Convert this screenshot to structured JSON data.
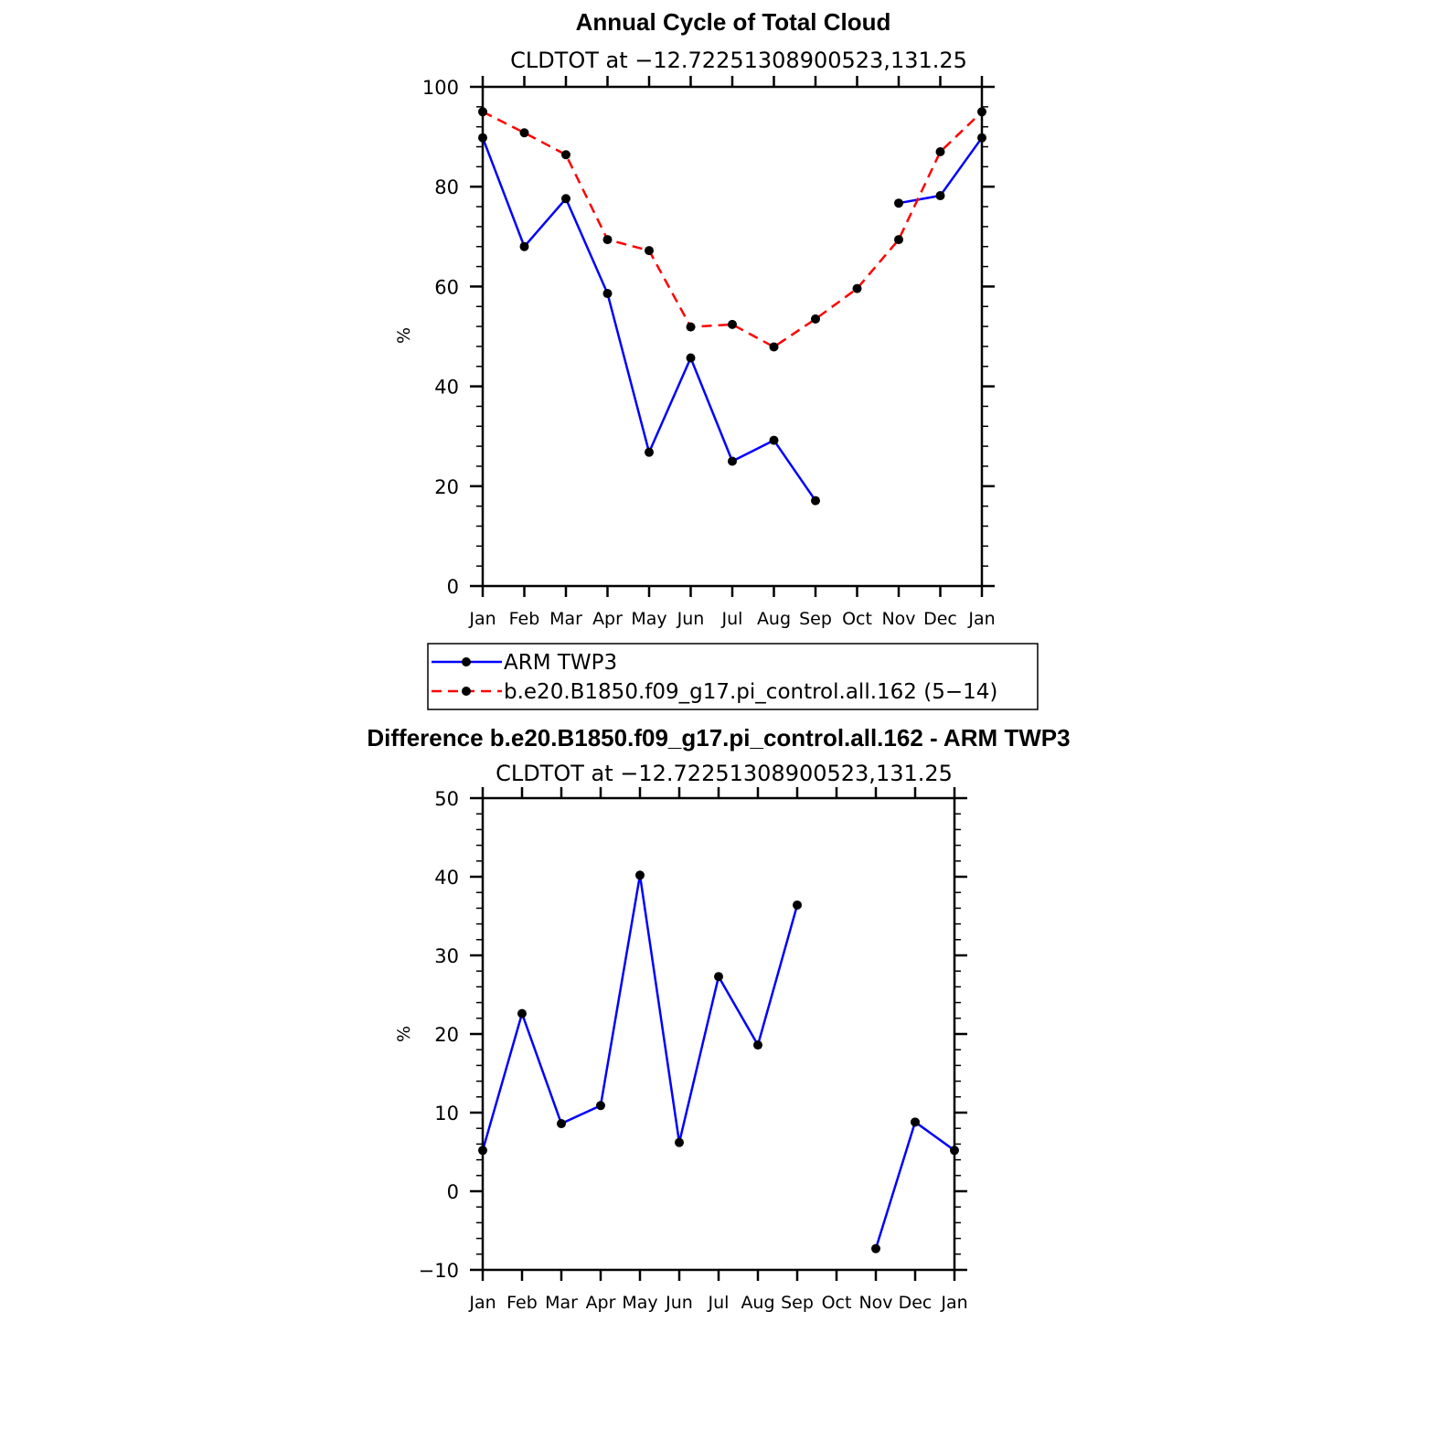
{
  "chart_data": [
    {
      "type": "line",
      "title": "Annual Cycle of Total Cloud",
      "subtitle": "CLDTOT at −12.72251308900523,131.25",
      "xlabel": "",
      "ylabel": "%",
      "ylim": [
        0,
        100
      ],
      "yticks": [
        "0",
        "20",
        "40",
        "60",
        "80",
        "100"
      ],
      "categories": [
        "Jan",
        "Feb",
        "Mar",
        "Apr",
        "May",
        "Jun",
        "Jul",
        "Aug",
        "Sep",
        "Oct",
        "Nov",
        "Dec",
        "Jan"
      ],
      "series": [
        {
          "name": "ARM TWP3",
          "color": "#0000ff",
          "style": "solid",
          "values": [
            89.8,
            68.0,
            77.6,
            58.6,
            26.8,
            45.7,
            25.0,
            29.2,
            17.1,
            null,
            76.7,
            78.2,
            89.8
          ]
        },
        {
          "name": "b.e20.B1850.f09_g17.pi_control.all.162 (5−14)",
          "color": "#ff0000",
          "style": "dashed",
          "values": [
            95.0,
            90.8,
            86.4,
            69.4,
            67.2,
            51.9,
            52.4,
            47.9,
            53.5,
            59.6,
            69.4,
            87.0,
            95.0
          ]
        }
      ],
      "legend": [
        "ARM TWP3",
        "b.e20.B1850.f09_g17.pi_control.all.162 (5−14)"
      ]
    },
    {
      "type": "line",
      "title": "Difference b.e20.B1850.f09_g17.pi_control.all.162 - ARM TWP3",
      "subtitle": "CLDTOT at −12.72251308900523,131.25",
      "xlabel": "",
      "ylabel": "%",
      "ylim": [
        -10,
        50
      ],
      "yticks": [
        "−10",
        "0",
        "10",
        "20",
        "30",
        "40",
        "50"
      ],
      "categories": [
        "Jan",
        "Feb",
        "Mar",
        "Apr",
        "May",
        "Jun",
        "Jul",
        "Aug",
        "Sep",
        "Oct",
        "Nov",
        "Dec",
        "Jan"
      ],
      "series": [
        {
          "name": "Difference",
          "color": "#0000ff",
          "style": "solid",
          "values": [
            5.2,
            22.6,
            8.6,
            10.9,
            40.2,
            6.2,
            27.3,
            18.6,
            36.4,
            null,
            -7.3,
            8.8,
            5.2
          ]
        }
      ]
    }
  ]
}
